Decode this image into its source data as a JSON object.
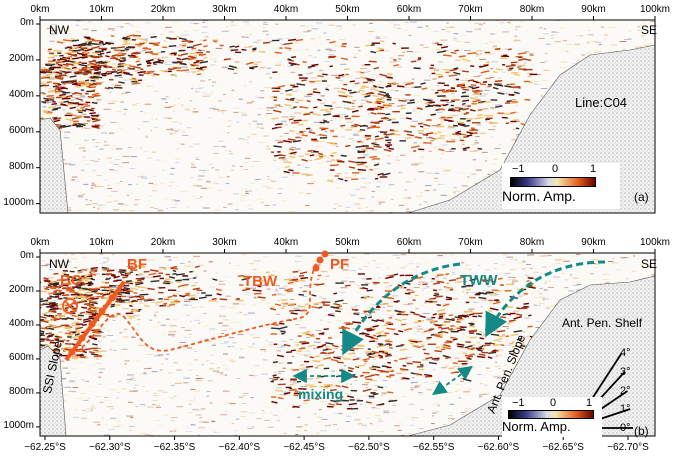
{
  "panels": [
    {
      "id": "a",
      "top_axis_labels": [
        "0km",
        "10km",
        "20km",
        "30km",
        "40km",
        "50km",
        "60km",
        "70km",
        "80km",
        "90km",
        "100km"
      ],
      "depth_labels": [
        "0m",
        "200m",
        "400m",
        "600m",
        "800m",
        "1000m"
      ],
      "corner_left": "NW",
      "corner_right": "SE",
      "line_label": "Line:C04",
      "colorbar": {
        "ticks": [
          "−1",
          "0",
          "1"
        ],
        "label": "Norm. Amp."
      },
      "panel_tag": "(a)"
    },
    {
      "id": "b",
      "top_axis_labels": [
        "0km",
        "10km",
        "20km",
        "30km",
        "40km",
        "50km",
        "60km",
        "70km",
        "80km",
        "90km",
        "100km"
      ],
      "depth_labels": [
        "0m",
        "200m",
        "400m",
        "600m",
        "800m",
        "1000m"
      ],
      "bottom_axis_labels": [
        "−62.25°S",
        "−62.30°S",
        "−62.35°S",
        "−62.40°S",
        "−62.45°S",
        "−62.50°S",
        "−62.55°S",
        "−62.60°S",
        "−62.65°S",
        "−62.70°S"
      ],
      "corner_left": "NW",
      "corner_right": "SE",
      "annotations": {
        "bc": "BC",
        "bf": "BF",
        "tbw": "TBW",
        "pf": "PF",
        "tww": "TWW",
        "mixing": "mixing",
        "ssi_slope": "SSI Slope",
        "ant_pen_slope": "Ant. Pen. Slope",
        "ant_pen_shelf": "Ant. Pen. Shelf"
      },
      "slope_angles": [
        "4°",
        "3°",
        "2°",
        "1°",
        "0°"
      ],
      "colorbar": {
        "ticks": [
          "−1",
          "0",
          "1"
        ],
        "label": "Norm. Amp."
      },
      "panel_tag": "(b)"
    }
  ],
  "colors": {
    "front": "#f05a1e",
    "tww_arrow": "#138a85",
    "seafloor_fill": "#e6e6e6"
  }
}
